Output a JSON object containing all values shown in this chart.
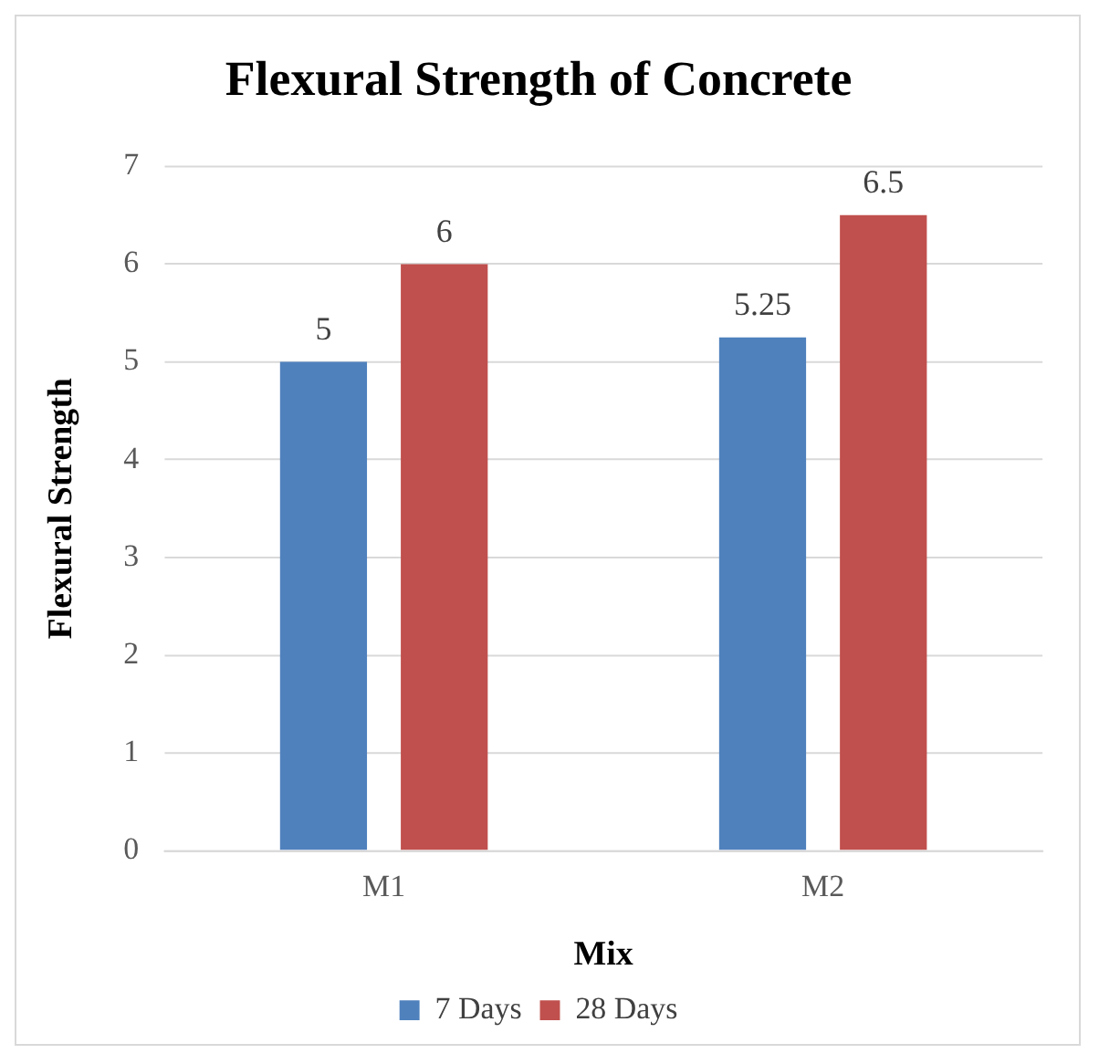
{
  "chart_data": {
    "type": "bar",
    "title": "Flexural Strength of Concrete",
    "xlabel": "Mix",
    "ylabel": "Flexural Strength",
    "categories": [
      "M1",
      "M2"
    ],
    "series": [
      {
        "name": "7 Days",
        "color": "#4f81bd",
        "values": [
          5,
          5.25
        ]
      },
      {
        "name": "28 Days",
        "color": "#c0504d",
        "values": [
          6,
          6.5
        ]
      }
    ],
    "ylim": [
      0,
      7
    ],
    "yticks": [
      0,
      1,
      2,
      3,
      4,
      5,
      6,
      7
    ],
    "grid": "y",
    "legend": "bottom",
    "data_labels": true
  }
}
